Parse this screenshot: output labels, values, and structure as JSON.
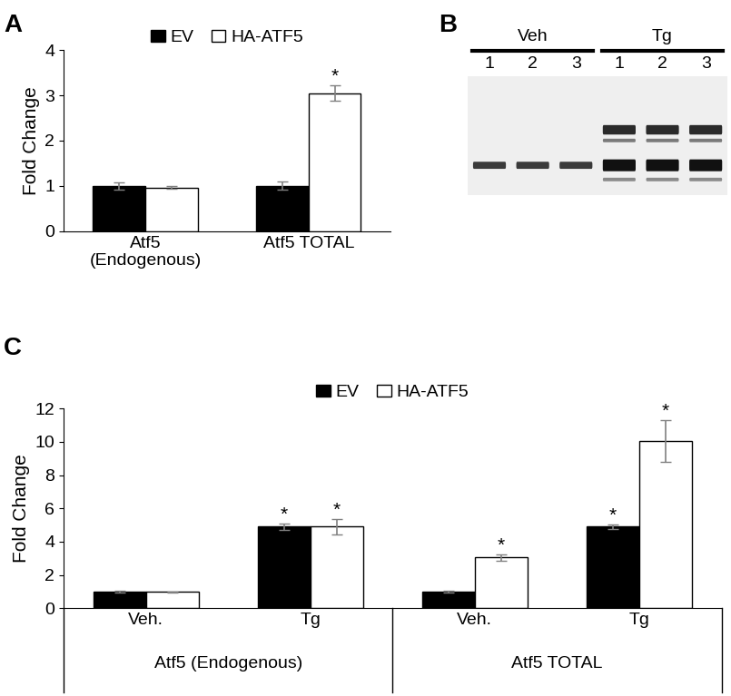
{
  "chart_data": [
    {
      "panel": "A",
      "type": "bar",
      "y_label": "Fold Change",
      "categories": [
        "Atf5\n(Endogenous)",
        "Atf5 TOTAL"
      ],
      "series": [
        {
          "name": "EV",
          "color": "#000000",
          "values": [
            1.0,
            1.0
          ],
          "errors": [
            0.08,
            0.09
          ],
          "annotations": [
            null,
            null
          ]
        },
        {
          "name": "HA-ATF5",
          "color": "#ffffff",
          "values": [
            0.96,
            3.05
          ],
          "errors": [
            0.03,
            0.17
          ],
          "annotations": [
            null,
            "*"
          ]
        }
      ],
      "ylim": [
        0,
        4
      ],
      "yticks": [
        0,
        1,
        2,
        3,
        4
      ],
      "legend": "upper center"
    },
    {
      "panel": "C",
      "type": "bar",
      "y_label": "Fold Change",
      "categories": [
        "Veh.",
        "Tg",
        "Veh.",
        "Tg"
      ],
      "category_groups": [
        {
          "name": "Atf5 (Endogenous)",
          "count": 2
        },
        {
          "name": "Atf5 TOTAL",
          "count": 2
        }
      ],
      "series": [
        {
          "name": "EV",
          "color": "#000000",
          "values": [
            1.0,
            4.9,
            1.0,
            4.9
          ],
          "errors": [
            0.08,
            0.18,
            0.08,
            0.15
          ],
          "annotations": [
            null,
            "*",
            null,
            "*"
          ]
        },
        {
          "name": "HA-ATF5",
          "color": "#ffffff",
          "values": [
            0.98,
            4.9,
            3.05,
            10.05
          ],
          "errors": [
            0.03,
            0.45,
            0.17,
            1.25
          ],
          "annotations": [
            null,
            "*",
            "*",
            "*"
          ]
        }
      ],
      "ylim": [
        0,
        12
      ],
      "yticks": [
        0,
        2,
        4,
        6,
        8,
        10,
        12
      ],
      "legend": "upper center"
    }
  ],
  "blot": {
    "panel": "B",
    "groups": [
      {
        "name": "Veh",
        "lanes": [
          "1",
          "2",
          "3"
        ]
      },
      {
        "name": "Tg",
        "lanes": [
          "1",
          "2",
          "3"
        ]
      }
    ]
  }
}
